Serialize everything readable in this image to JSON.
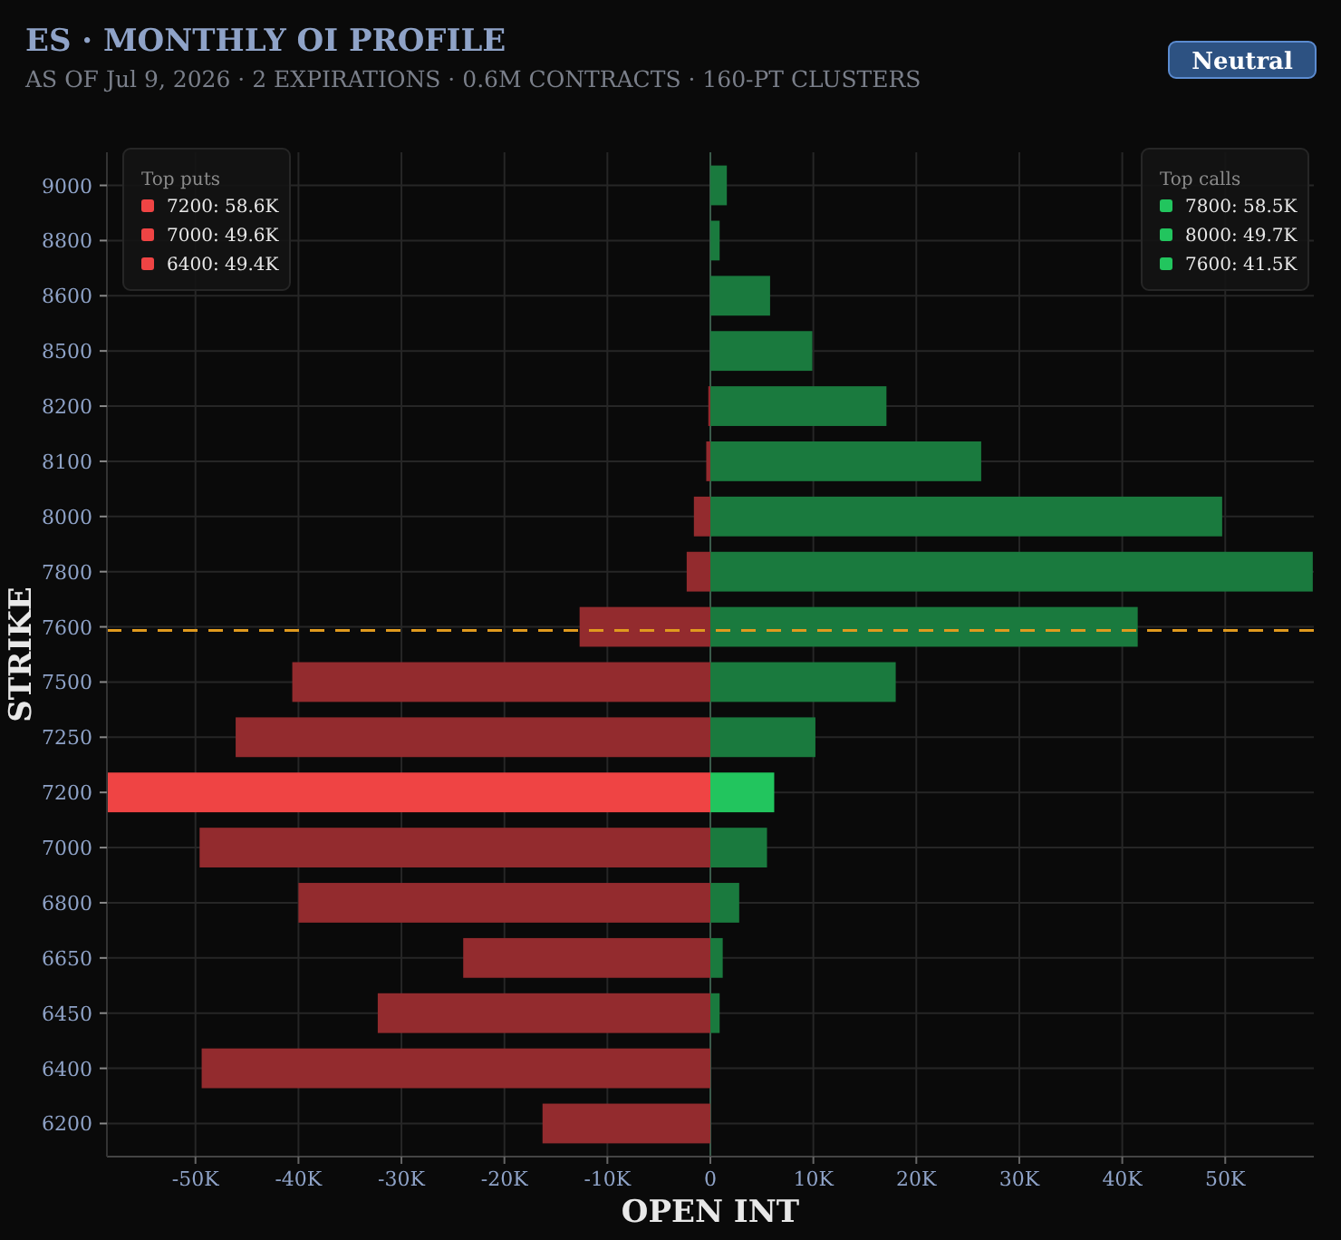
{
  "chart_data": {
    "type": "bar",
    "orientation": "horizontal",
    "stacked": true,
    "title": "ES · MONTHLY OI PROFILE",
    "subtitle": "AS OF Jul 9, 2026 · 2 EXPIRATIONS · 0.6M CONTRACTS · 160-PT CLUSTERS",
    "xlabel": "OPEN INT",
    "ylabel": "STRIKE",
    "categories": [
      "9000",
      "8800",
      "8600",
      "8500",
      "8200",
      "8100",
      "8000",
      "7800",
      "7600",
      "7500",
      "7250",
      "7200",
      "7000",
      "6800",
      "6650",
      "6450",
      "6400",
      "6200"
    ],
    "series": [
      {
        "color": "#932b2e",
        "colors": [
          "#932b2e",
          "#932b2e",
          "#932b2e",
          "#932b2e",
          "#932b2e",
          "#932b2e",
          "#932b2e",
          "#932b2e",
          "#932b2e",
          "#932b2e",
          "#932b2e",
          "#ef4444",
          "#932b2e",
          "#932b2e",
          "#932b2e",
          "#932b2e",
          "#932b2e",
          "#932b2e"
        ],
        "values": [
          0,
          0,
          0,
          0,
          -200,
          -400,
          -1600,
          -2300,
          -12700,
          -40600,
          -46100,
          -58600,
          -49600,
          -40000,
          -24000,
          -32300,
          -49400,
          -16300
        ]
      },
      {
        "color": "#1a7a3e",
        "colors": [
          "#1a7a3e",
          "#1a7a3e",
          "#1a7a3e",
          "#1a7a3e",
          "#1a7a3e",
          "#1a7a3e",
          "#1a7a3e",
          "#1a7a3e",
          "#1a7a3e",
          "#1a7a3e",
          "#1a7a3e",
          "#22c55e",
          "#1a7a3e",
          "#1a7a3e",
          "#1a7a3e",
          "#1a7a3e",
          "#1a7a3e",
          "#1a7a3e"
        ],
        "values": [
          1600,
          900,
          5800,
          9900,
          17100,
          26300,
          49700,
          58500,
          41500,
          18000,
          10200,
          6200,
          5500,
          2800,
          1200,
          900,
          0,
          0
        ]
      }
    ],
    "xlim": [
      -58600,
      58600
    ],
    "xticks": [
      {
        "value": -50000,
        "label": "-50K"
      },
      {
        "value": -40000,
        "label": "-40K"
      },
      {
        "value": -30000,
        "label": "-30K"
      },
      {
        "value": -20000,
        "label": "-20K"
      },
      {
        "value": -10000,
        "label": "-10K"
      },
      0,
      {
        "value": 10000,
        "label": "10K"
      },
      {
        "value": 20000,
        "label": "20K"
      },
      {
        "value": 30000,
        "label": "30K"
      },
      {
        "value": 40000,
        "label": "40K"
      },
      {
        "value": 50000,
        "label": "50K"
      }
    ],
    "grid": true,
    "ref_lines": [
      {
        "axis": "y",
        "value": "7600",
        "color": "#e09a1e",
        "line_style": "dashed"
      }
    ],
    "annotations": [
      "Top puts",
      "7200: 58.6K",
      "7000: 49.6K",
      "6400: 49.4K",
      "Top calls",
      "7800: 58.5K",
      "8000: 49.7K",
      "7600: 41.5K",
      "Neutral"
    ]
  }
}
